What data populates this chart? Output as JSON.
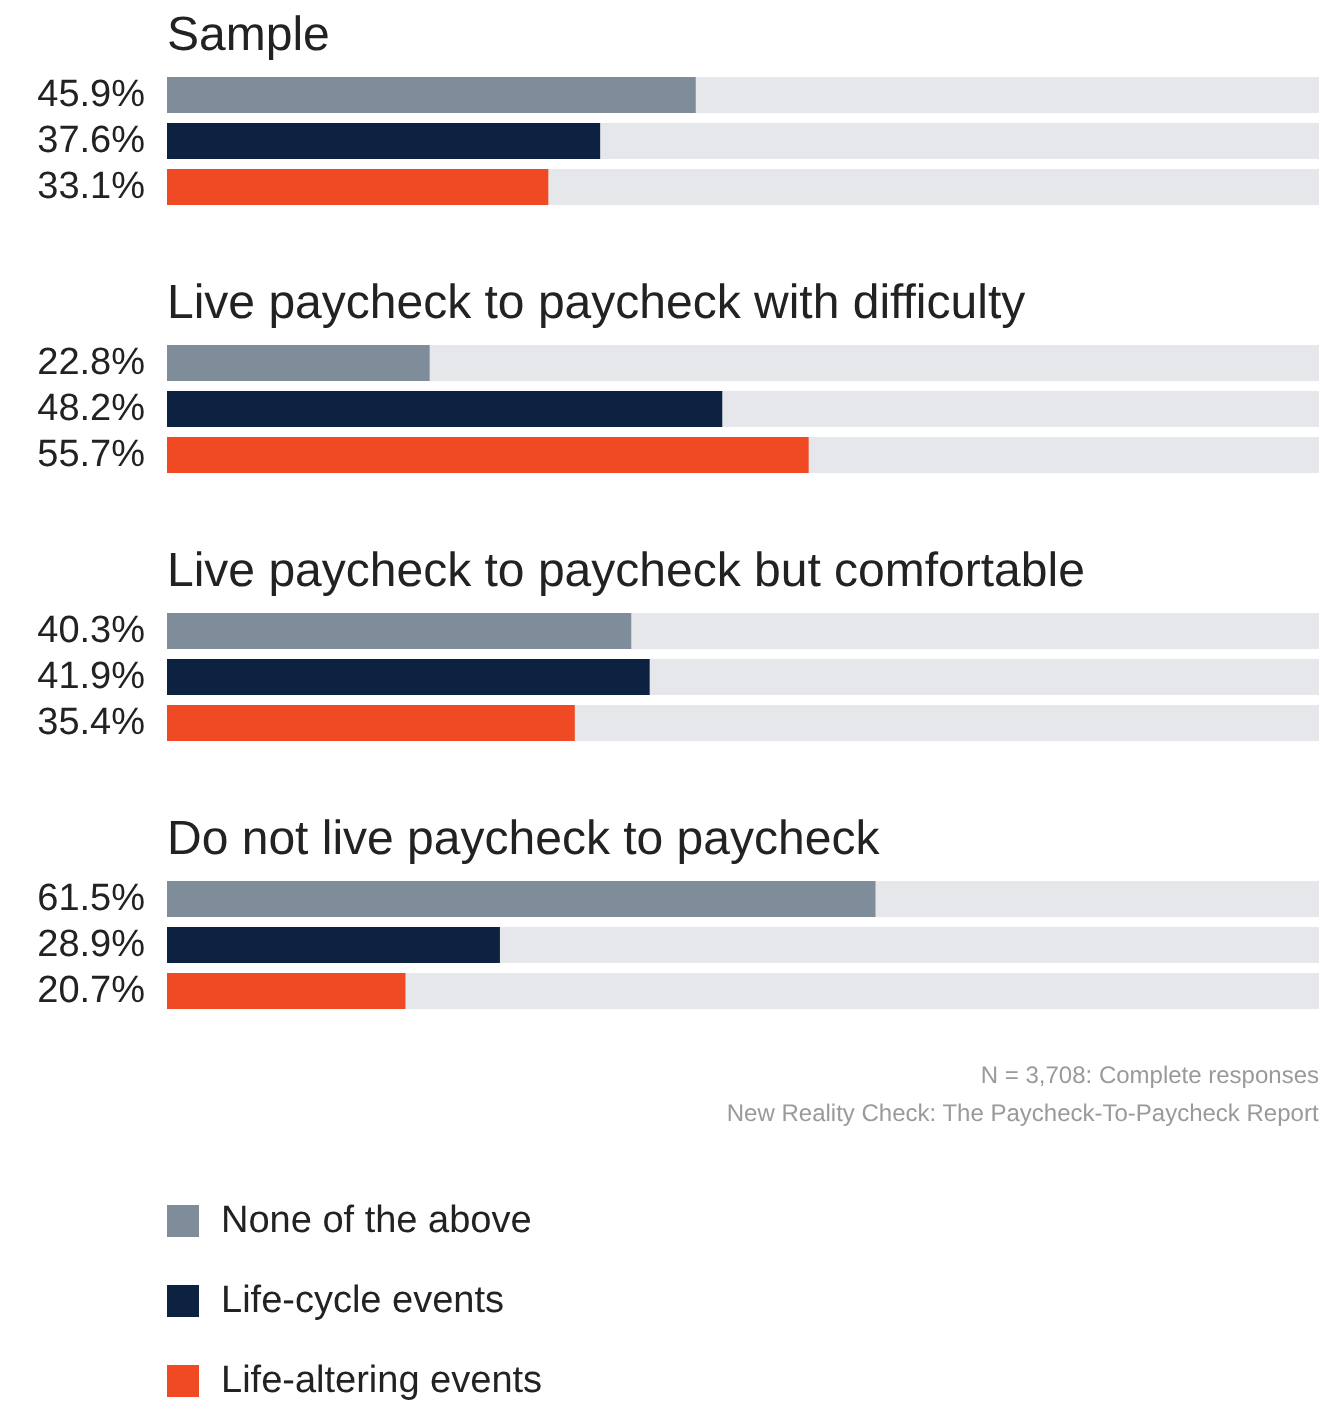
{
  "chart_data": {
    "type": "bar",
    "orientation": "horizontal",
    "categories": [
      "Sample",
      "Live paycheck to paycheck with difficulty",
      "Live paycheck to paycheck but comfortable",
      "Do not live paycheck to paycheck"
    ],
    "series": [
      {
        "name": "None of the above",
        "color": "#7f8c99",
        "values": [
          45.9,
          22.8,
          40.3,
          61.5
        ],
        "value_labels": [
          "45.9%",
          "22.8%",
          "40.3%",
          "61.5%"
        ]
      },
      {
        "name": "Life-cycle events",
        "color": "#0d2240",
        "values": [
          37.6,
          48.2,
          41.9,
          28.9
        ],
        "value_labels": [
          "37.6%",
          "48.2%",
          "41.9%",
          "28.9%"
        ]
      },
      {
        "name": "Life-altering events",
        "color": "#f04a24",
        "values": [
          33.1,
          55.7,
          35.4,
          20.7
        ],
        "value_labels": [
          "33.1%",
          "55.7%",
          "35.4%",
          "20.7%"
        ]
      }
    ],
    "legend": "bottom",
    "grid": false,
    "annotations": [
      "N = 3,708: Complete responses",
      "New Reality Check: The Paycheck-To-Paycheck Report"
    ]
  }
}
